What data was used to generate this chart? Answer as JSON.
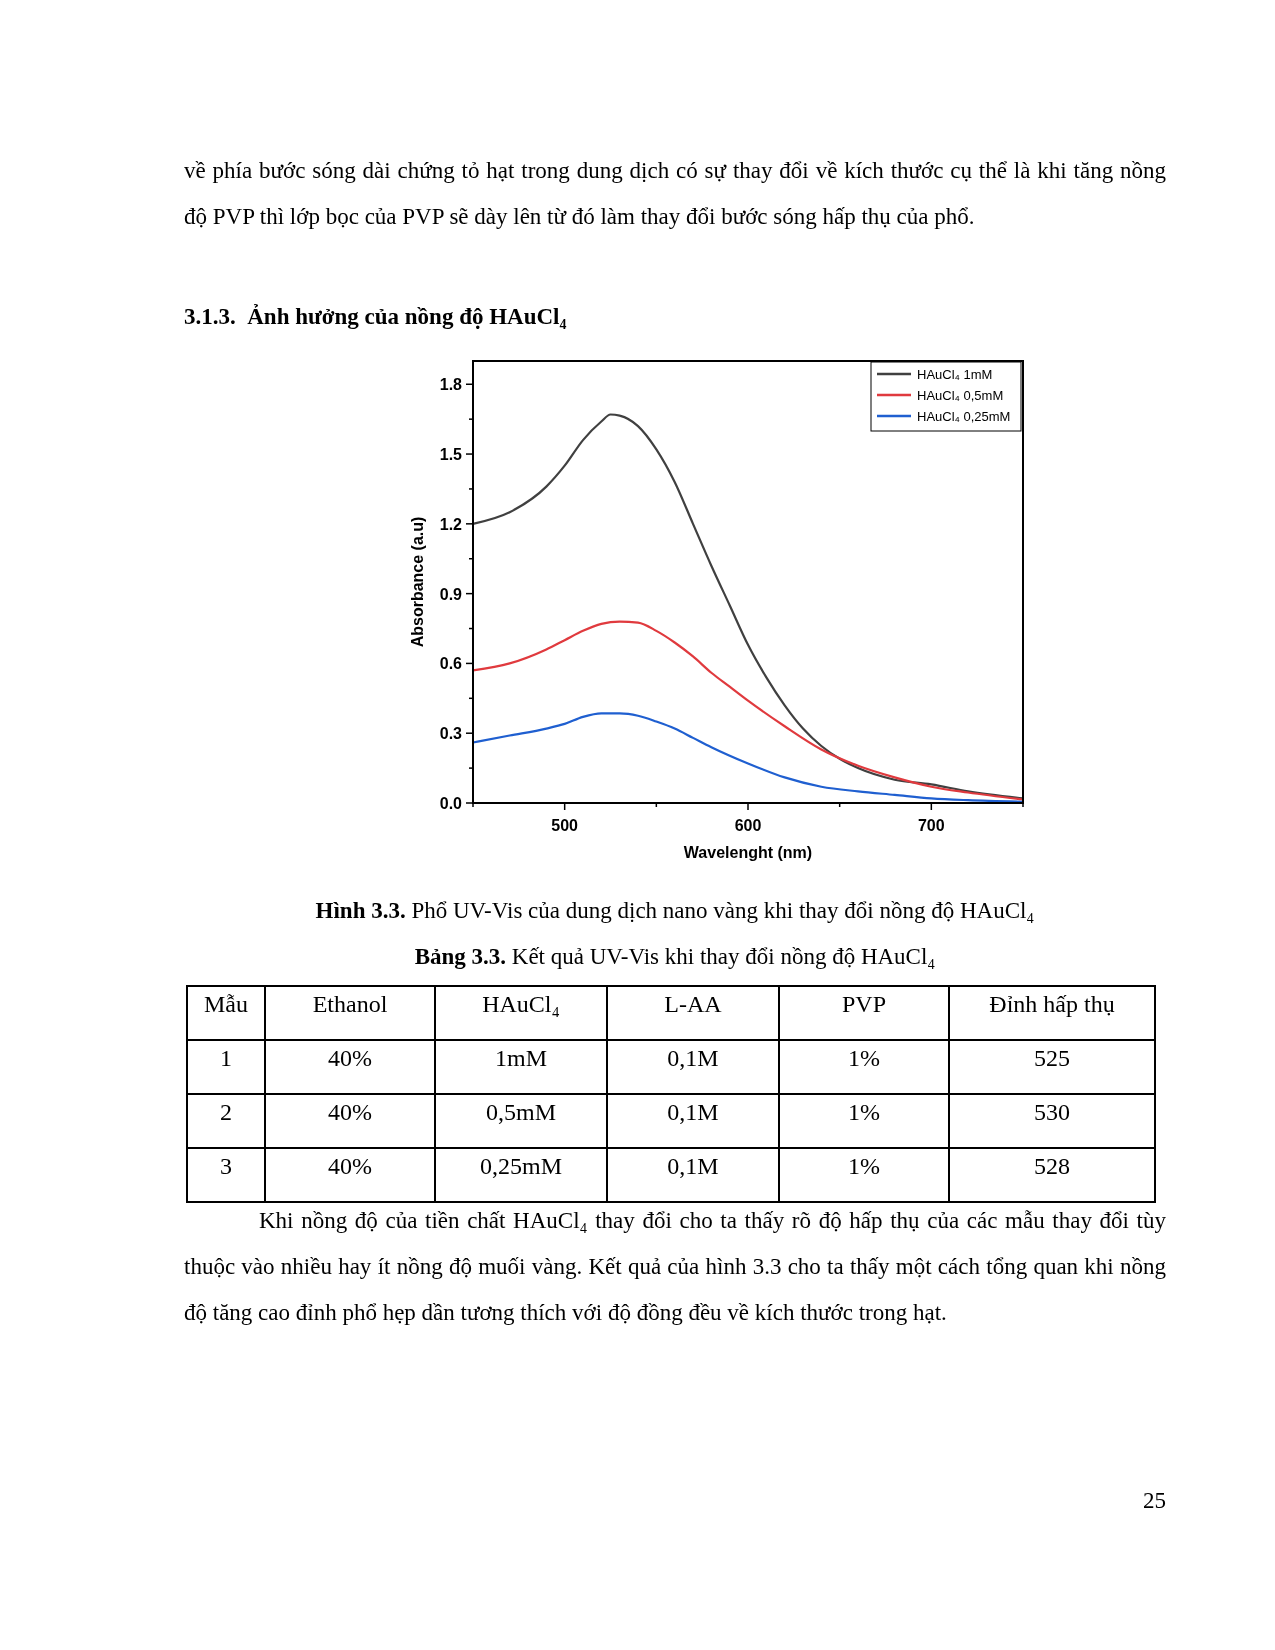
{
  "chart_data": [
    {
      "type": "line",
      "xlabel": "Wavelenght (nm)",
      "ylabel": "Absorbance (a.u)",
      "xlim": [
        450,
        750
      ],
      "ylim": [
        0,
        1.9
      ],
      "xticks": [
        {
          "value": 450,
          "label": null
        },
        500,
        {
          "value": 550,
          "label": null
        },
        600,
        {
          "value": 650,
          "label": null
        },
        700,
        {
          "value": 750,
          "label": null
        }
      ],
      "yticks": [
        {
          "value": 0,
          "label": "0.0"
        },
        {
          "value": 0.15,
          "label": null
        },
        0.3,
        {
          "value": 0.45,
          "label": null
        },
        0.6,
        {
          "value": 0.75,
          "label": null
        },
        0.9,
        {
          "value": 1.05,
          "label": null
        },
        1.2,
        {
          "value": 1.35,
          "label": null
        },
        1.5,
        {
          "value": 1.65,
          "label": null
        },
        1.8
      ],
      "legend": "top right",
      "grid": false,
      "marker": "none",
      "line_style": "solid",
      "series": [
        {
          "name": "HAuCl₄ 1mM",
          "color": "#404040",
          "x": [
            450,
            470,
            490,
            500,
            510,
            520,
            525,
            530,
            540,
            550,
            560,
            570,
            580,
            590,
            600,
            610,
            620,
            630,
            640,
            650,
            660,
            680,
            700,
            720,
            750
          ],
          "values": [
            1.2,
            1.25,
            1.36,
            1.45,
            1.56,
            1.64,
            1.67,
            1.665,
            1.62,
            1.52,
            1.38,
            1.2,
            1.02,
            0.85,
            0.68,
            0.54,
            0.42,
            0.32,
            0.245,
            0.19,
            0.15,
            0.1,
            0.08,
            0.05,
            0.02
          ]
        },
        {
          "name": "HAuCl₄ 0,5mM",
          "color": "#e03a3e",
          "x": [
            450,
            470,
            490,
            500,
            510,
            520,
            530,
            540,
            550,
            560,
            570,
            580,
            590,
            600,
            620,
            640,
            660,
            680,
            700,
            720,
            750
          ],
          "values": [
            0.57,
            0.6,
            0.66,
            0.7,
            0.74,
            0.77,
            0.78,
            0.775,
            0.74,
            0.69,
            0.63,
            0.56,
            0.5,
            0.44,
            0.33,
            0.23,
            0.16,
            0.11,
            0.07,
            0.045,
            0.015
          ]
        },
        {
          "name": "HAuCl₄ 0,25mM",
          "color": "#1f5fd0",
          "x": [
            450,
            470,
            490,
            500,
            510,
            520,
            530,
            540,
            550,
            560,
            570,
            580,
            600,
            620,
            640,
            660,
            680,
            700,
            720,
            750
          ],
          "values": [
            0.26,
            0.29,
            0.32,
            0.34,
            0.37,
            0.385,
            0.385,
            0.375,
            0.35,
            0.32,
            0.28,
            0.24,
            0.17,
            0.11,
            0.07,
            0.05,
            0.035,
            0.02,
            0.012,
            0.005
          ]
        }
      ],
      "annotations": [
        "về phía bước sóng dài chứng tỏ hạt trong dung dịch có sự thay đổi về kích thước cụ thể là khi tăng nồng độ PVP thì lớp bọc của PVP sẽ dày lên từ đó làm thay đổi bước sóng hấp thụ của phổ.",
        "3.1.3.  Ảnh hưởng của nồng độ HAuCl₄",
        "Hình 3.3. Phổ UV-Vis của dung dịch nano vàng khi thay đổi nồng độ HAuCl₄"
      ]
    },
    {
      "type": "other",
      "title": "Bảng 3.3. Kết quả UV-Vis khi thay đổi nồng độ HAuCl₄",
      "annotations": [
        "Mẫu",
        "Ethanol",
        "HAuCl₄",
        "L-AA",
        "PVP",
        "Đỉnh hấp thụ",
        "1",
        "40%",
        "1mM",
        "0,1M",
        "1%",
        "525",
        "2",
        "40%",
        "0,5mM",
        "0,1M",
        "1%",
        "530",
        "3",
        "40%",
        "0,25mM",
        "0,1M",
        "1%",
        "528",
        "Khi nồng độ của tiền chất HAuCl₄ thay đổi cho ta thấy rõ độ hấp thụ của các mẫu thay đổi tùy thuộc vào nhiều hay ít nồng độ muối vàng. Kết quả của hình 3.3 cho ta thấy một cách tổng quan khi nồng độ tăng cao đỉnh phổ hẹp dần tương thích với độ đồng đều về kích thước trong hạt.",
        "25"
      ]
    }
  ]
}
